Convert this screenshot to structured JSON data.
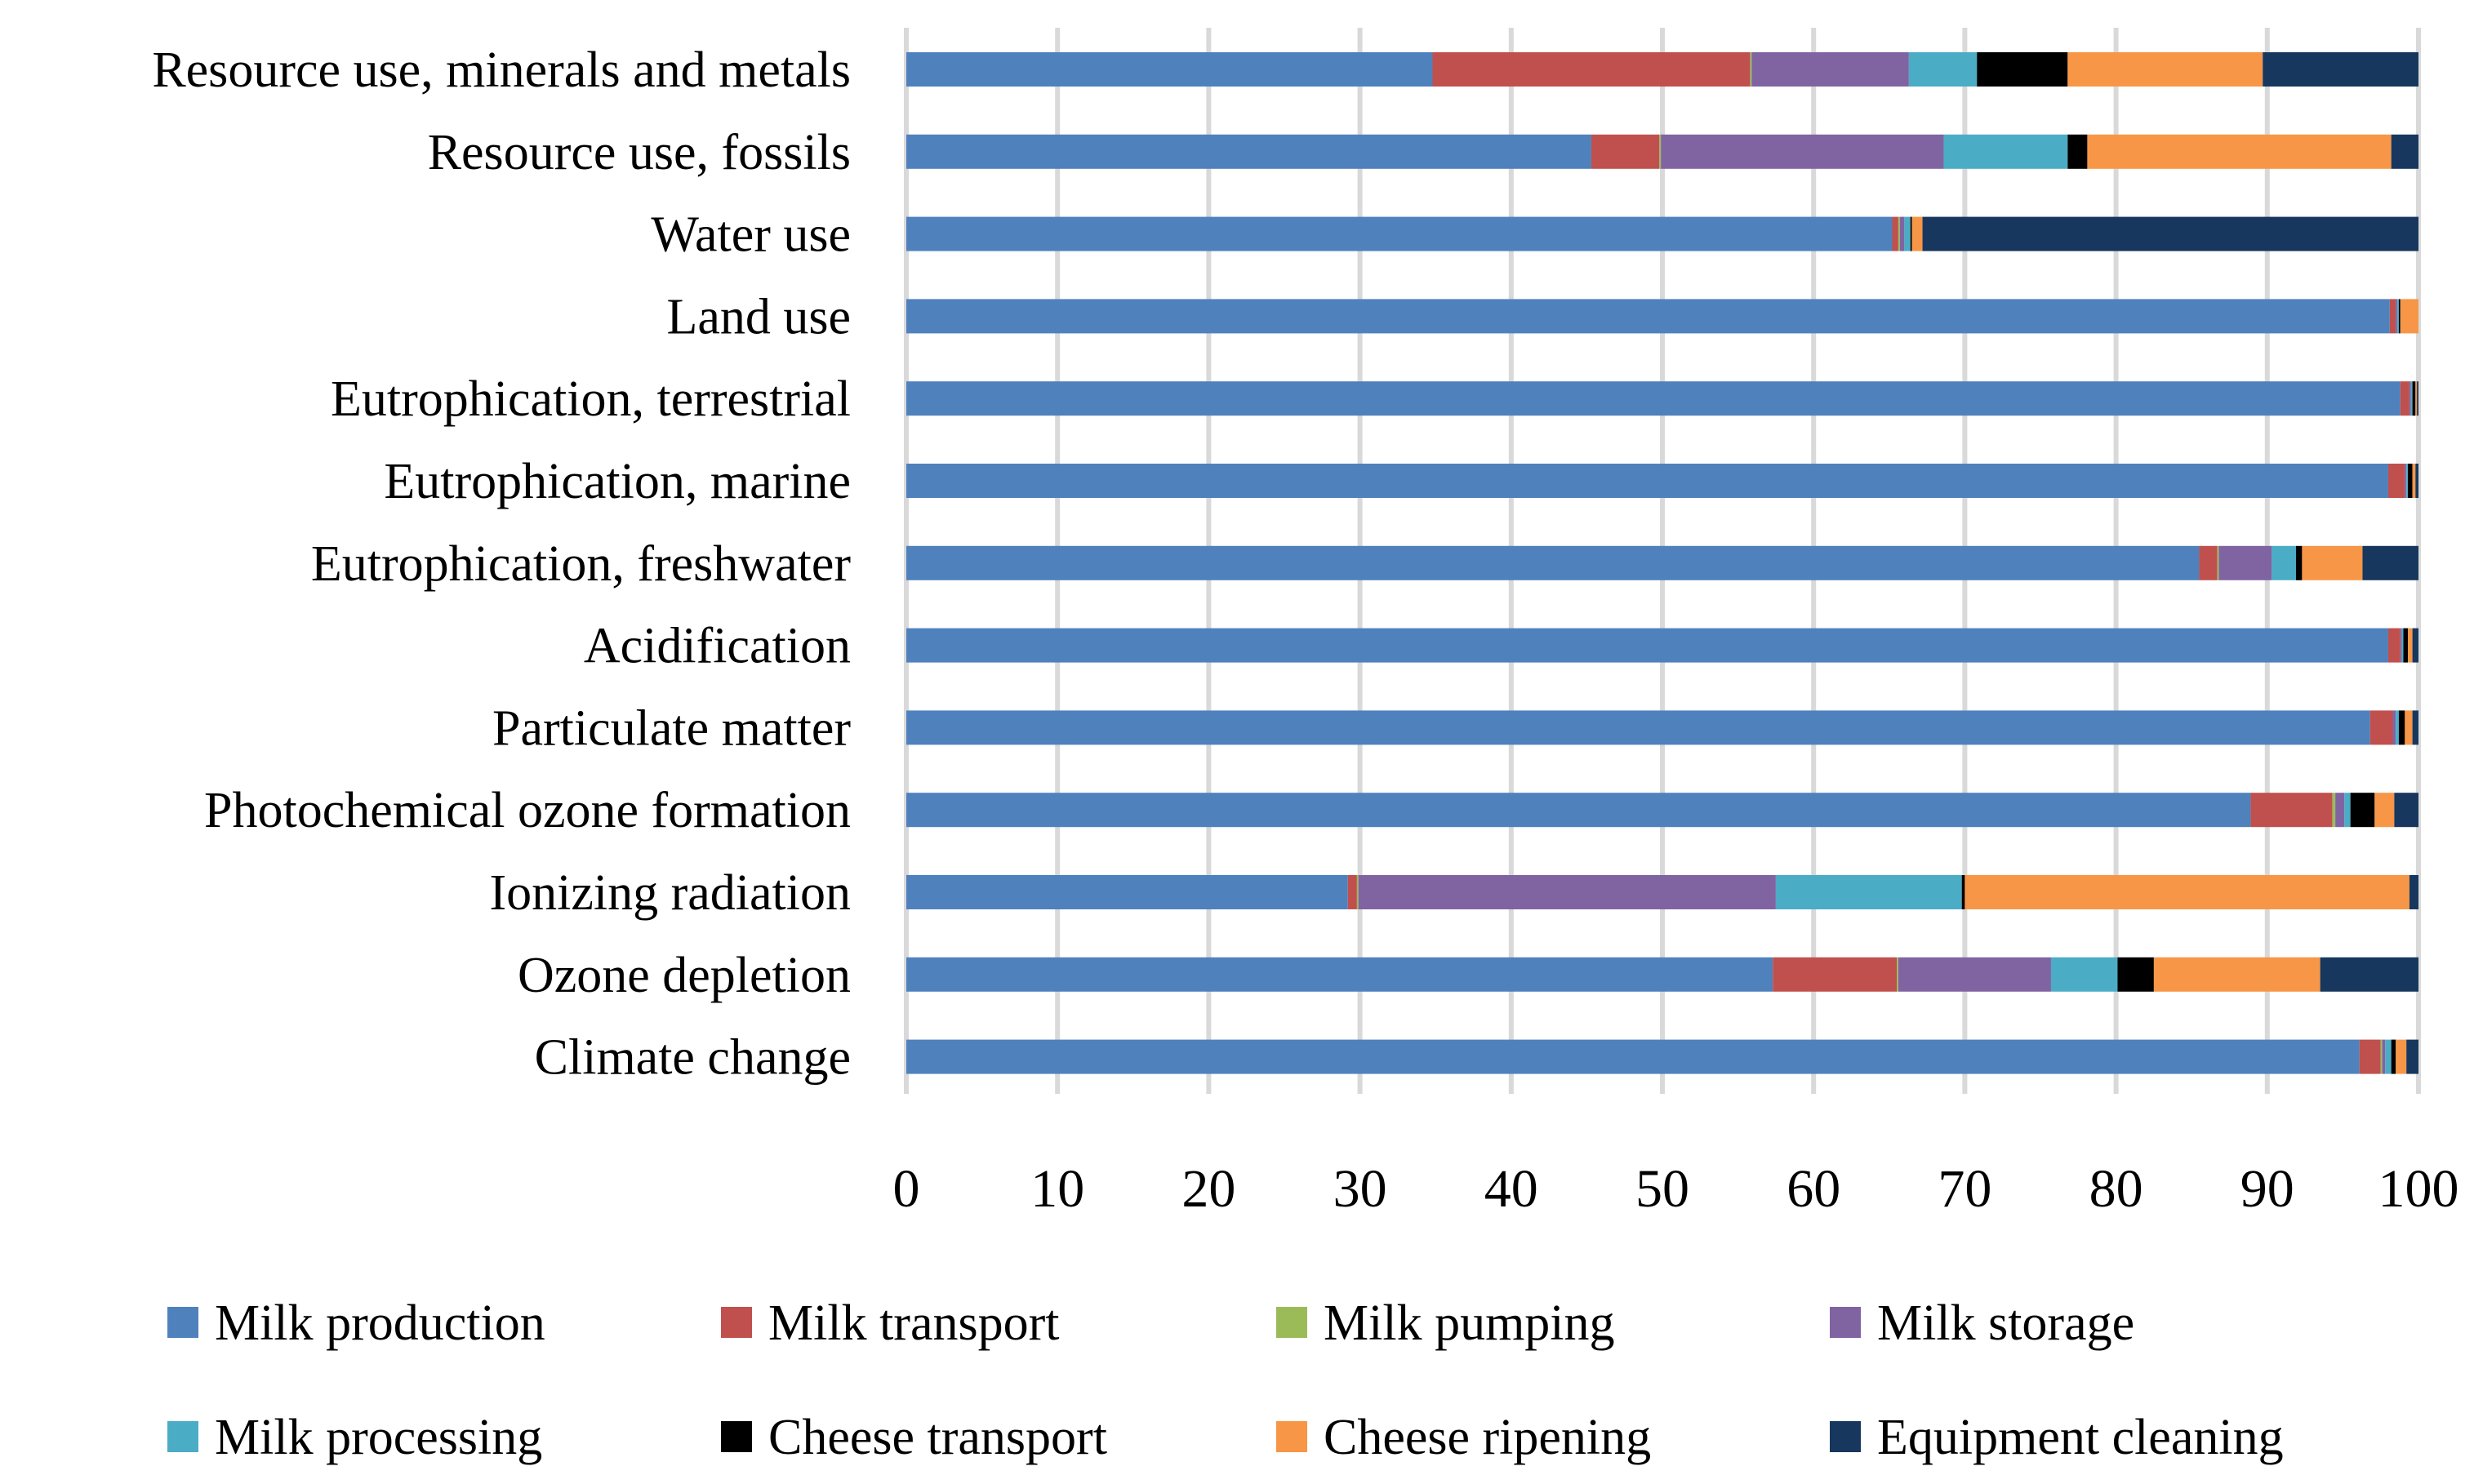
{
  "chart_data": {
    "type": "bar",
    "orientation": "horizontal",
    "stacked": true,
    "title": "",
    "xlabel": "",
    "ylabel": "",
    "xlim": [
      0,
      100
    ],
    "grid": true,
    "legend_position": "bottom",
    "x_ticks": [
      "0",
      "10",
      "20",
      "30",
      "40",
      "50",
      "60",
      "70",
      "80",
      "90",
      "100"
    ],
    "categories": [
      "Resource use, minerals and metals",
      "Resource use, fossils",
      "Water use",
      "Land use",
      "Eutrophication, terrestrial",
      "Eutrophication, marine",
      "Eutrophication, freshwater",
      "Acidification",
      "Particulate matter",
      "Photochemical ozone formation",
      "Ionizing radiation",
      "Ozone depletion",
      "Climate change"
    ],
    "series": [
      {
        "name": "Milk production",
        "color": "#4F81BD",
        "values": [
          34.8,
          45.3,
          65.2,
          98.1,
          98.8,
          98.0,
          85.5,
          98.0,
          96.8,
          88.9,
          29.2,
          57.3,
          96.1
        ]
      },
      {
        "name": "Milk transport",
        "color": "#C0504D",
        "values": [
          21.0,
          4.5,
          0.4,
          0.4,
          0.6,
          1.1,
          1.2,
          0.8,
          1.5,
          5.4,
          0.6,
          8.2,
          1.4
        ]
      },
      {
        "name": "Milk pumping",
        "color": "#9BBB59",
        "values": [
          0.1,
          0.1,
          0.1,
          0.0,
          0.0,
          0.0,
          0.1,
          0.0,
          0.0,
          0.2,
          0.1,
          0.1,
          0.1
        ]
      },
      {
        "name": "Milk storage",
        "color": "#8064A2",
        "values": [
          10.4,
          18.7,
          0.3,
          0.1,
          0.1,
          0.1,
          3.5,
          0.1,
          0.2,
          0.6,
          27.6,
          10.1,
          0.2
        ]
      },
      {
        "name": "Milk processing",
        "color": "#4BACC6",
        "values": [
          4.5,
          8.2,
          0.4,
          0.1,
          0.1,
          0.1,
          1.6,
          0.1,
          0.2,
          0.4,
          12.3,
          4.4,
          0.4
        ]
      },
      {
        "name": "Cheese transport",
        "color": "#000000",
        "values": [
          6.0,
          1.3,
          0.1,
          0.1,
          0.2,
          0.3,
          0.4,
          0.3,
          0.4,
          1.6,
          0.2,
          2.4,
          0.3
        ]
      },
      {
        "name": "Cheese ripening",
        "color": "#F79646",
        "values": [
          12.9,
          20.1,
          0.7,
          1.2,
          0.1,
          0.2,
          4.0,
          0.3,
          0.5,
          1.3,
          29.4,
          11.0,
          0.7
        ]
      },
      {
        "name": "Equipment cleaning",
        "color": "#17375E",
        "values": [
          10.3,
          1.8,
          32.8,
          0.0,
          0.1,
          0.2,
          3.7,
          0.4,
          0.4,
          1.6,
          0.6,
          6.5,
          0.8
        ]
      }
    ]
  }
}
